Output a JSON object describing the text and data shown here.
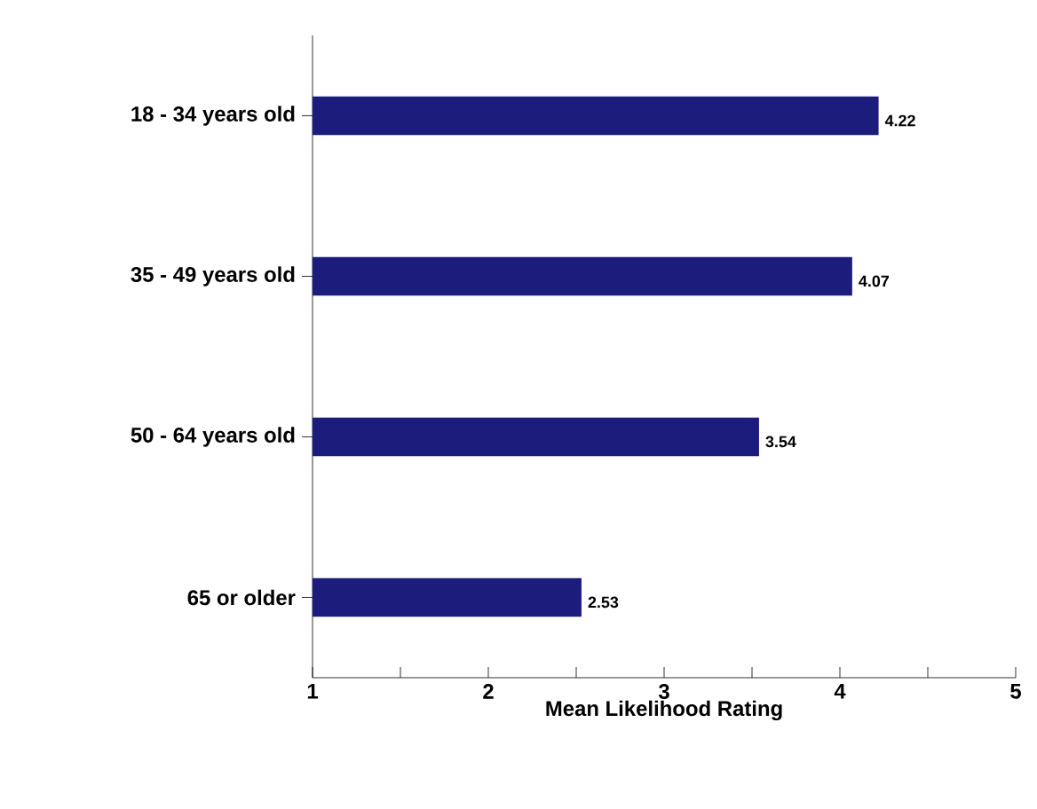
{
  "chart_data": {
    "type": "bar",
    "orientation": "horizontal",
    "categories": [
      "18 - 34 years old",
      "35 - 49 years old",
      "50 - 64 years old",
      "65 or older"
    ],
    "values": [
      4.22,
      4.07,
      3.54,
      2.53
    ],
    "color": "#1c1c7c",
    "xlabel": "Mean Likelihood Rating",
    "xlim": [
      1,
      5
    ],
    "xticks": [
      1,
      {
        "value": 1.5,
        "label": null
      },
      2,
      {
        "value": 2.5,
        "label": null
      },
      3,
      {
        "value": 3.5,
        "label": null
      },
      4,
      {
        "value": 4.5,
        "label": null
      },
      5
    ],
    "data_labels": true
  }
}
